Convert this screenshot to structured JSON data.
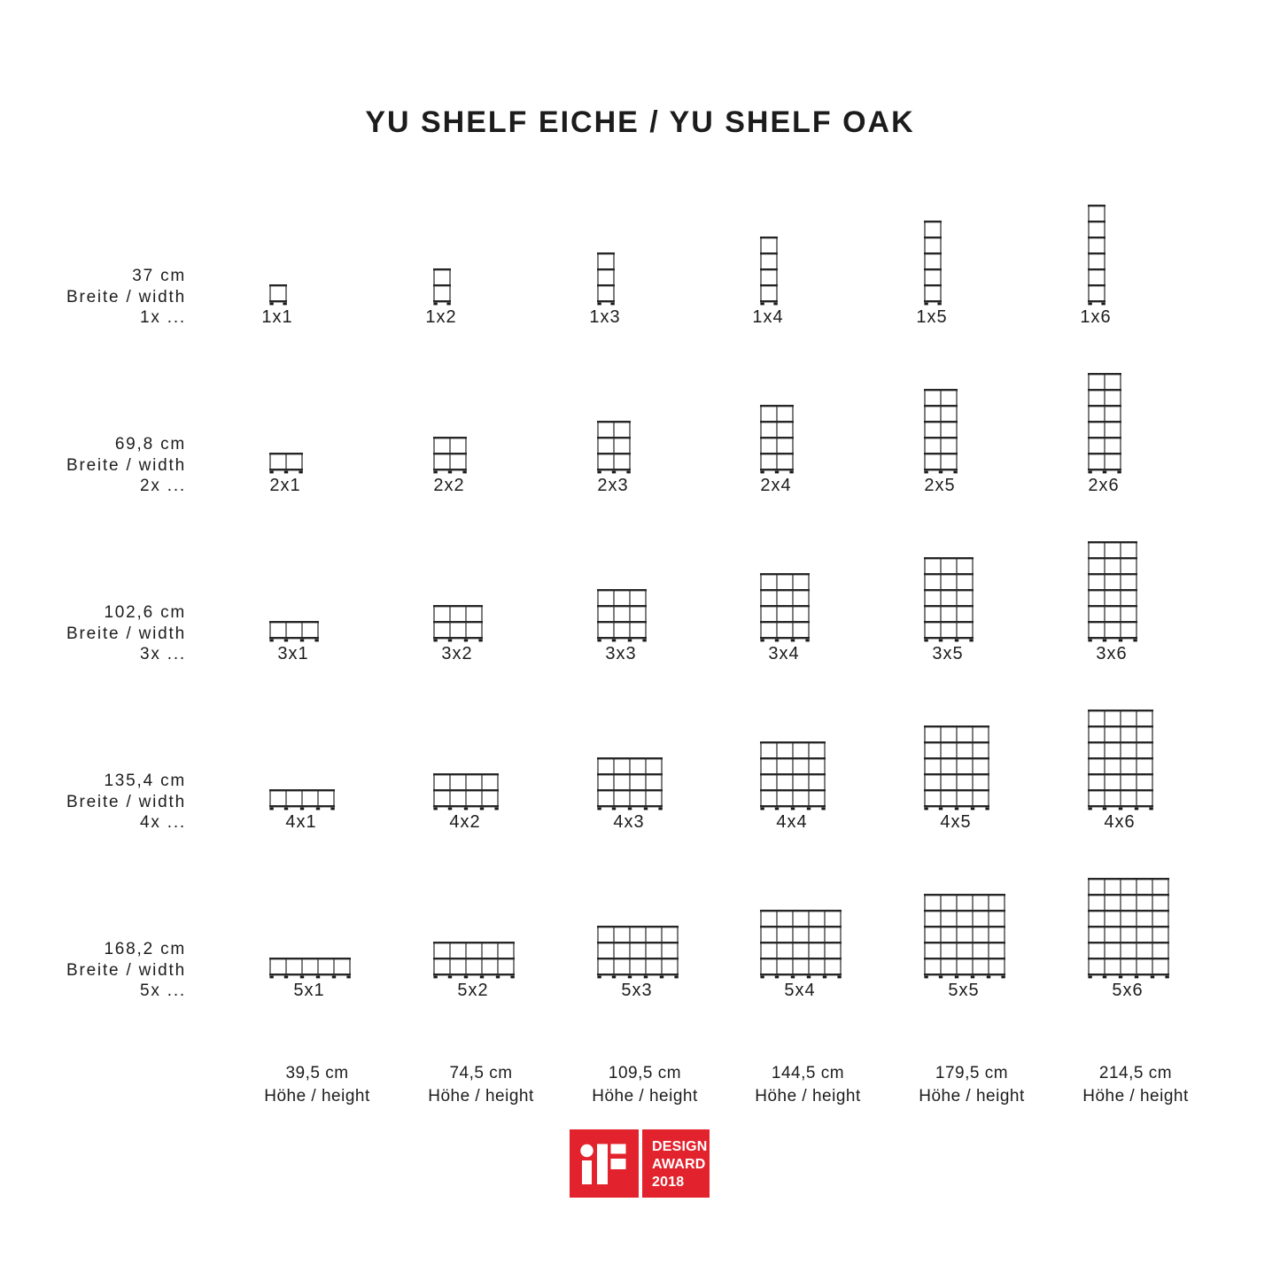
{
  "title": "YU SHELF EICHE / YU SHELF OAK",
  "rows": [
    {
      "width_cm": "37 cm",
      "dim_label": "Breite / width",
      "units_label": "1x ...",
      "units": 1,
      "cells": [
        "1x1",
        "1x2",
        "1x3",
        "1x4",
        "1x5",
        "1x6"
      ]
    },
    {
      "width_cm": "69,8 cm",
      "dim_label": "Breite / width",
      "units_label": "2x ...",
      "units": 2,
      "cells": [
        "2x1",
        "2x2",
        "2x3",
        "2x4",
        "2x5",
        "2x6"
      ]
    },
    {
      "width_cm": "102,6 cm",
      "dim_label": "Breite / width",
      "units_label": "3x ...",
      "units": 3,
      "cells": [
        "3x1",
        "3x2",
        "3x3",
        "3x4",
        "3x5",
        "3x6"
      ]
    },
    {
      "width_cm": "135,4 cm",
      "dim_label": "Breite / width",
      "units_label": "4x ...",
      "units": 4,
      "cells": [
        "4x1",
        "4x2",
        "4x3",
        "4x4",
        "4x5",
        "4x6"
      ]
    },
    {
      "width_cm": "168,2 cm",
      "dim_label": "Breite / width",
      "units_label": "5x ...",
      "units": 5,
      "cells": [
        "5x1",
        "5x2",
        "5x3",
        "5x4",
        "5x5",
        "5x6"
      ]
    }
  ],
  "columns": [
    {
      "height_cm": "39,5 cm",
      "dim_label": "Höhe / height",
      "units": 1
    },
    {
      "height_cm": "74,5 cm",
      "dim_label": "Höhe / height",
      "units": 2
    },
    {
      "height_cm": "109,5 cm",
      "dim_label": "Höhe / height",
      "units": 3
    },
    {
      "height_cm": "144,5 cm",
      "dim_label": "Höhe / height",
      "units": 4
    },
    {
      "height_cm": "179,5 cm",
      "dim_label": "Höhe / height",
      "units": 5
    },
    {
      "height_cm": "214,5 cm",
      "dim_label": "Höhe / height",
      "units": 6
    }
  ],
  "award_badge": {
    "brand": "iF",
    "lines": [
      "DESIGN",
      "AWARD",
      "2018"
    ],
    "red": "#e2232d"
  },
  "colors": {
    "ink": "#1c1c1c",
    "line": "#262626",
    "foot": "#1a1a1a",
    "background": "#ffffff"
  }
}
